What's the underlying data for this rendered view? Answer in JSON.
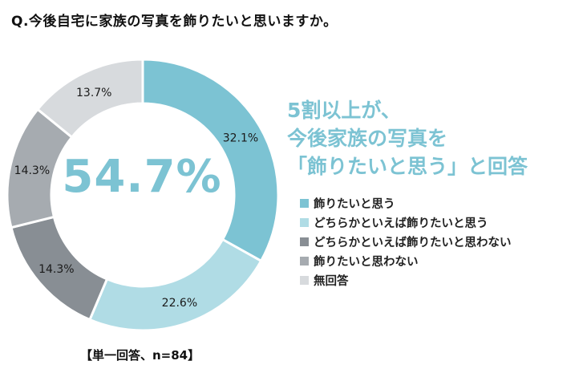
{
  "question": "Q.今後自宅に家族の写真を飾りたいと思いますか。",
  "center_value": "54.7%",
  "headline": [
    "5割以上が、",
    "今後家族の写真を",
    "「飾りたいと思う」と回答"
  ],
  "footnote": "【単一回答、n=84】",
  "chart_data": {
    "type": "pie",
    "donut": true,
    "categories": [
      "飾りたいと思う",
      "どちらかといえば飾りたいと思う",
      "どちらかといえば飾りたいと思わない",
      "飾りたいと思わない",
      "無回答"
    ],
    "values": [
      32.1,
      22.6,
      14.3,
      14.3,
      13.7
    ],
    "labels": [
      "32.1%",
      "22.6%",
      "14.3%",
      "14.3%",
      "13.7%"
    ],
    "colors": [
      "#7cc3d3",
      "#b0dce5",
      "#888e94",
      "#a6abb0",
      "#d7dadd"
    ],
    "legend_position": "right"
  }
}
